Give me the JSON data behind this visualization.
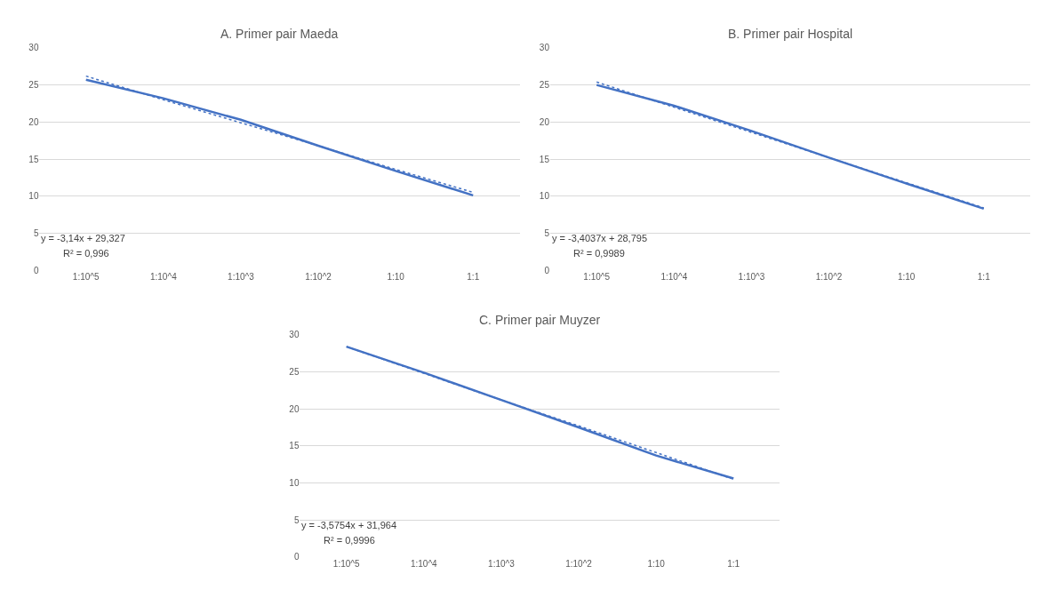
{
  "chart_data": [
    {
      "type": "line",
      "title": "A. Primer pair Maeda",
      "categories": [
        "1:10^5",
        "1:10^4",
        "1:10^3",
        "1:10^2",
        "1:10",
        "1:1"
      ],
      "ylim": [
        0,
        30
      ],
      "yticks": [
        0,
        5,
        10,
        15,
        20,
        25,
        30
      ],
      "grid": "y",
      "series": [
        {
          "color": "#4472c4",
          "line_style": "solid",
          "values": [
            25.7,
            23.2,
            20.3,
            16.8,
            13.4,
            10.1
          ]
        },
        {
          "type": "line",
          "color": "#4472c4",
          "line_style": "dotted",
          "values": [
            26.2,
            23.0,
            19.9,
            16.8,
            13.6,
            10.5
          ]
        }
      ],
      "annotations": [
        "y = -3,14x + 29,327",
        "R² = 0,996"
      ]
    },
    {
      "type": "line",
      "title": "B. Primer pair Hospital",
      "categories": [
        "1:10^5",
        "1:10^4",
        "1:10^3",
        "1:10^2",
        "1:10",
        "1:1"
      ],
      "ylim": [
        0,
        30
      ],
      "yticks": [
        0,
        5,
        10,
        15,
        20,
        25,
        30
      ],
      "grid": "y",
      "series": [
        {
          "color": "#4472c4",
          "line_style": "solid",
          "values": [
            25.0,
            22.2,
            18.8,
            15.2,
            11.7,
            8.3
          ]
        },
        {
          "type": "line",
          "color": "#4472c4",
          "line_style": "dotted",
          "values": [
            25.4,
            22.0,
            18.6,
            15.2,
            11.8,
            8.4
          ]
        }
      ],
      "annotations": [
        "y = -3,4037x + 28,795",
        "R² = 0,9989"
      ]
    },
    {
      "type": "line",
      "title": "C. Primer pair Muyzer",
      "categories": [
        "1:10^5",
        "1:10^4",
        "1:10^3",
        "1:10^2",
        "1:10",
        "1:1"
      ],
      "ylim": [
        0,
        30
      ],
      "yticks": [
        0,
        5,
        10,
        15,
        20,
        25,
        30
      ],
      "grid": "y",
      "series": [
        {
          "color": "#4472c4",
          "line_style": "solid",
          "values": [
            28.4,
            24.9,
            21.2,
            17.5,
            13.7,
            10.6
          ]
        },
        {
          "type": "line",
          "color": "#4472c4",
          "line_style": "dotted",
          "values": [
            28.4,
            24.8,
            21.2,
            17.7,
            14.1,
            10.5
          ]
        }
      ],
      "annotations": [
        "y = -3,5754x + 31,964",
        "R² = 0,9996"
      ]
    }
  ]
}
